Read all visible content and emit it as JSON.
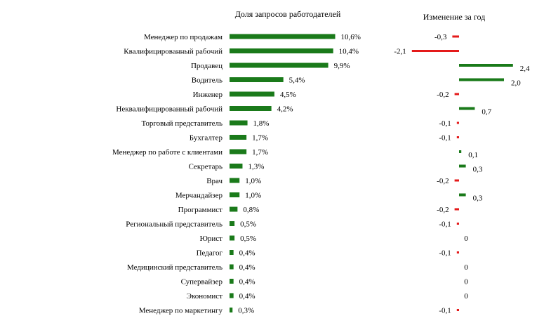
{
  "chart_data": [
    {
      "type": "bar",
      "orientation": "horizontal",
      "title": "Доля запросов работодателей",
      "categories": [
        "Менеджер по продажам",
        "Квалифицированный  рабочий",
        "Продавец",
        "Водитель",
        "Инженер",
        "Неквалифицированный  рабочий",
        "Торговый представитель",
        "Бухгалтер",
        "Менеджер по работе с клиентами",
        "Секретарь",
        "Врач",
        "Мерчандайзер",
        "Программист",
        "Региональный представитель",
        "Юрист",
        "Педагог",
        "Медицинский представитель",
        "Супервайзер",
        "Экономист",
        "Менеджер по маркетингу"
      ],
      "values": [
        10.6,
        10.4,
        9.9,
        5.4,
        4.5,
        4.2,
        1.8,
        1.7,
        1.7,
        1.3,
        1.0,
        1.0,
        0.8,
        0.5,
        0.5,
        0.4,
        0.4,
        0.4,
        0.4,
        0.3
      ],
      "value_labels": [
        "10,6%",
        "10,4%",
        "9,9%",
        "5,4%",
        "4,5%",
        "4,2%",
        "1,8%",
        "1,7%",
        "1,7%",
        "1,3%",
        "1,0%",
        "1,0%",
        "0,8%",
        "0,5%",
        "0,5%",
        "0,4%",
        "0,4%",
        "0,4%",
        "0,4%",
        "0,3%"
      ],
      "xlim": [
        0,
        11
      ],
      "grid": false,
      "colors": {
        "bar": "#1a7a1a"
      }
    },
    {
      "type": "bar",
      "orientation": "horizontal",
      "title": "Изменение за год",
      "categories": [
        "Менеджер по продажам",
        "Квалифицированный  рабочий",
        "Продавец",
        "Водитель",
        "Инженер",
        "Неквалифицированный  рабочий",
        "Торговый представитель",
        "Бухгалтер",
        "Менеджер по работе с клиентами",
        "Секретарь",
        "Врач",
        "Мерчандайзер",
        "Программист",
        "Региональный представитель",
        "Юрист",
        "Педагог",
        "Медицинский представитель",
        "Супервайзер",
        "Экономист",
        "Менеджер по маркетингу"
      ],
      "values": [
        -0.3,
        -2.1,
        2.4,
        2.0,
        -0.2,
        0.7,
        -0.1,
        -0.1,
        0.1,
        0.3,
        -0.2,
        0.3,
        -0.2,
        -0.1,
        0,
        -0.1,
        0,
        0,
        0,
        -0.1
      ],
      "value_labels": [
        "-0,3",
        "-2,1",
        "2,4",
        "2,0",
        "-0,2",
        "0,7",
        "-0,1",
        "-0,1",
        "0,1",
        "0,3",
        "-0,2",
        "0,3",
        "-0,2",
        "-0,1",
        "0",
        "-0,1",
        "0",
        "0",
        "0",
        "-0,1"
      ],
      "xlim": [
        -2.1,
        2.4
      ],
      "grid": false,
      "colors": {
        "positive": "#1a7a1a",
        "negative": "#e41a1a"
      }
    }
  ]
}
